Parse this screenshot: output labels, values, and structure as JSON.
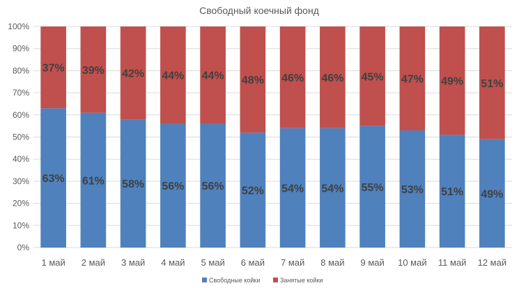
{
  "chart_data": {
    "type": "bar",
    "stacked": true,
    "title": "Свободный коечный фонд",
    "xlabel": "",
    "ylabel": "",
    "ylim": [
      0,
      100
    ],
    "yticks": [
      "0%",
      "10%",
      "20%",
      "30%",
      "40%",
      "50%",
      "60%",
      "70%",
      "80%",
      "90%",
      "100%"
    ],
    "categories": [
      "1 май",
      "2 май",
      "3 май",
      "4 май",
      "5 май",
      "6 май",
      "7 май",
      "8 май",
      "9 май",
      "10 май",
      "11 май",
      "12 май"
    ],
    "series": [
      {
        "name": "Свободные койки",
        "color": "#4f81bd",
        "values": [
          63,
          61,
          58,
          56,
          56,
          52,
          54,
          54,
          55,
          53,
          51,
          49
        ],
        "labels": [
          "63%",
          "61%",
          "58%",
          "56%",
          "56%",
          "52%",
          "54%",
          "54%",
          "55%",
          "53%",
          "51%",
          "49%"
        ]
      },
      {
        "name": "Занятые койки",
        "color": "#c0504d",
        "values": [
          37,
          39,
          42,
          44,
          44,
          48,
          46,
          46,
          45,
          47,
          49,
          51
        ],
        "labels": [
          "37%",
          "39%",
          "42%",
          "44%",
          "44%",
          "48%",
          "46%",
          "46%",
          "45%",
          "47%",
          "49%",
          "51%"
        ]
      }
    ],
    "grid": true,
    "legend": "bottom"
  }
}
